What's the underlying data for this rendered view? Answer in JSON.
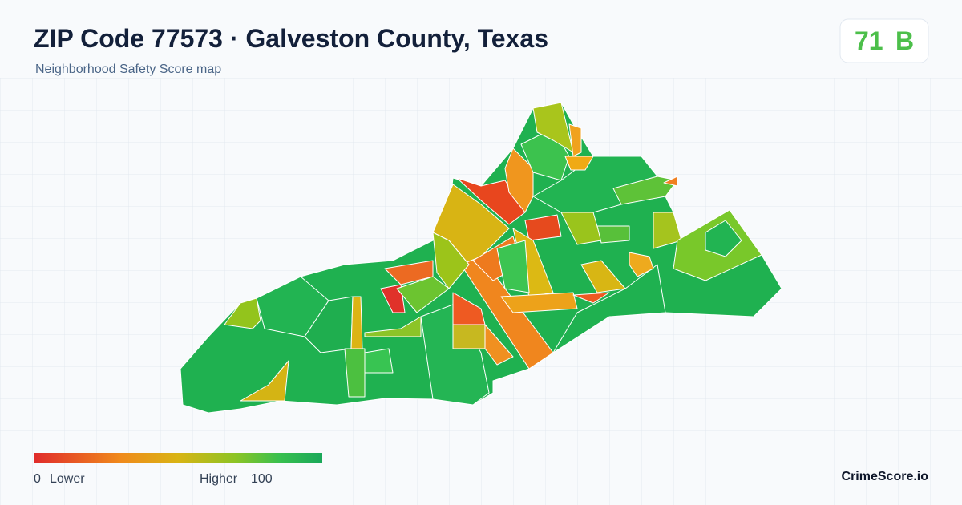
{
  "header": {
    "title": "ZIP Code 77573 · Galveston County, Texas",
    "subtitle": "Neighborhood Safety Score map"
  },
  "score": {
    "value": 71,
    "grade": "B"
  },
  "legend": {
    "min": 0,
    "min_label": "Lower",
    "max_label": "Higher",
    "max": 100
  },
  "brand": "CrimeScore.io"
}
